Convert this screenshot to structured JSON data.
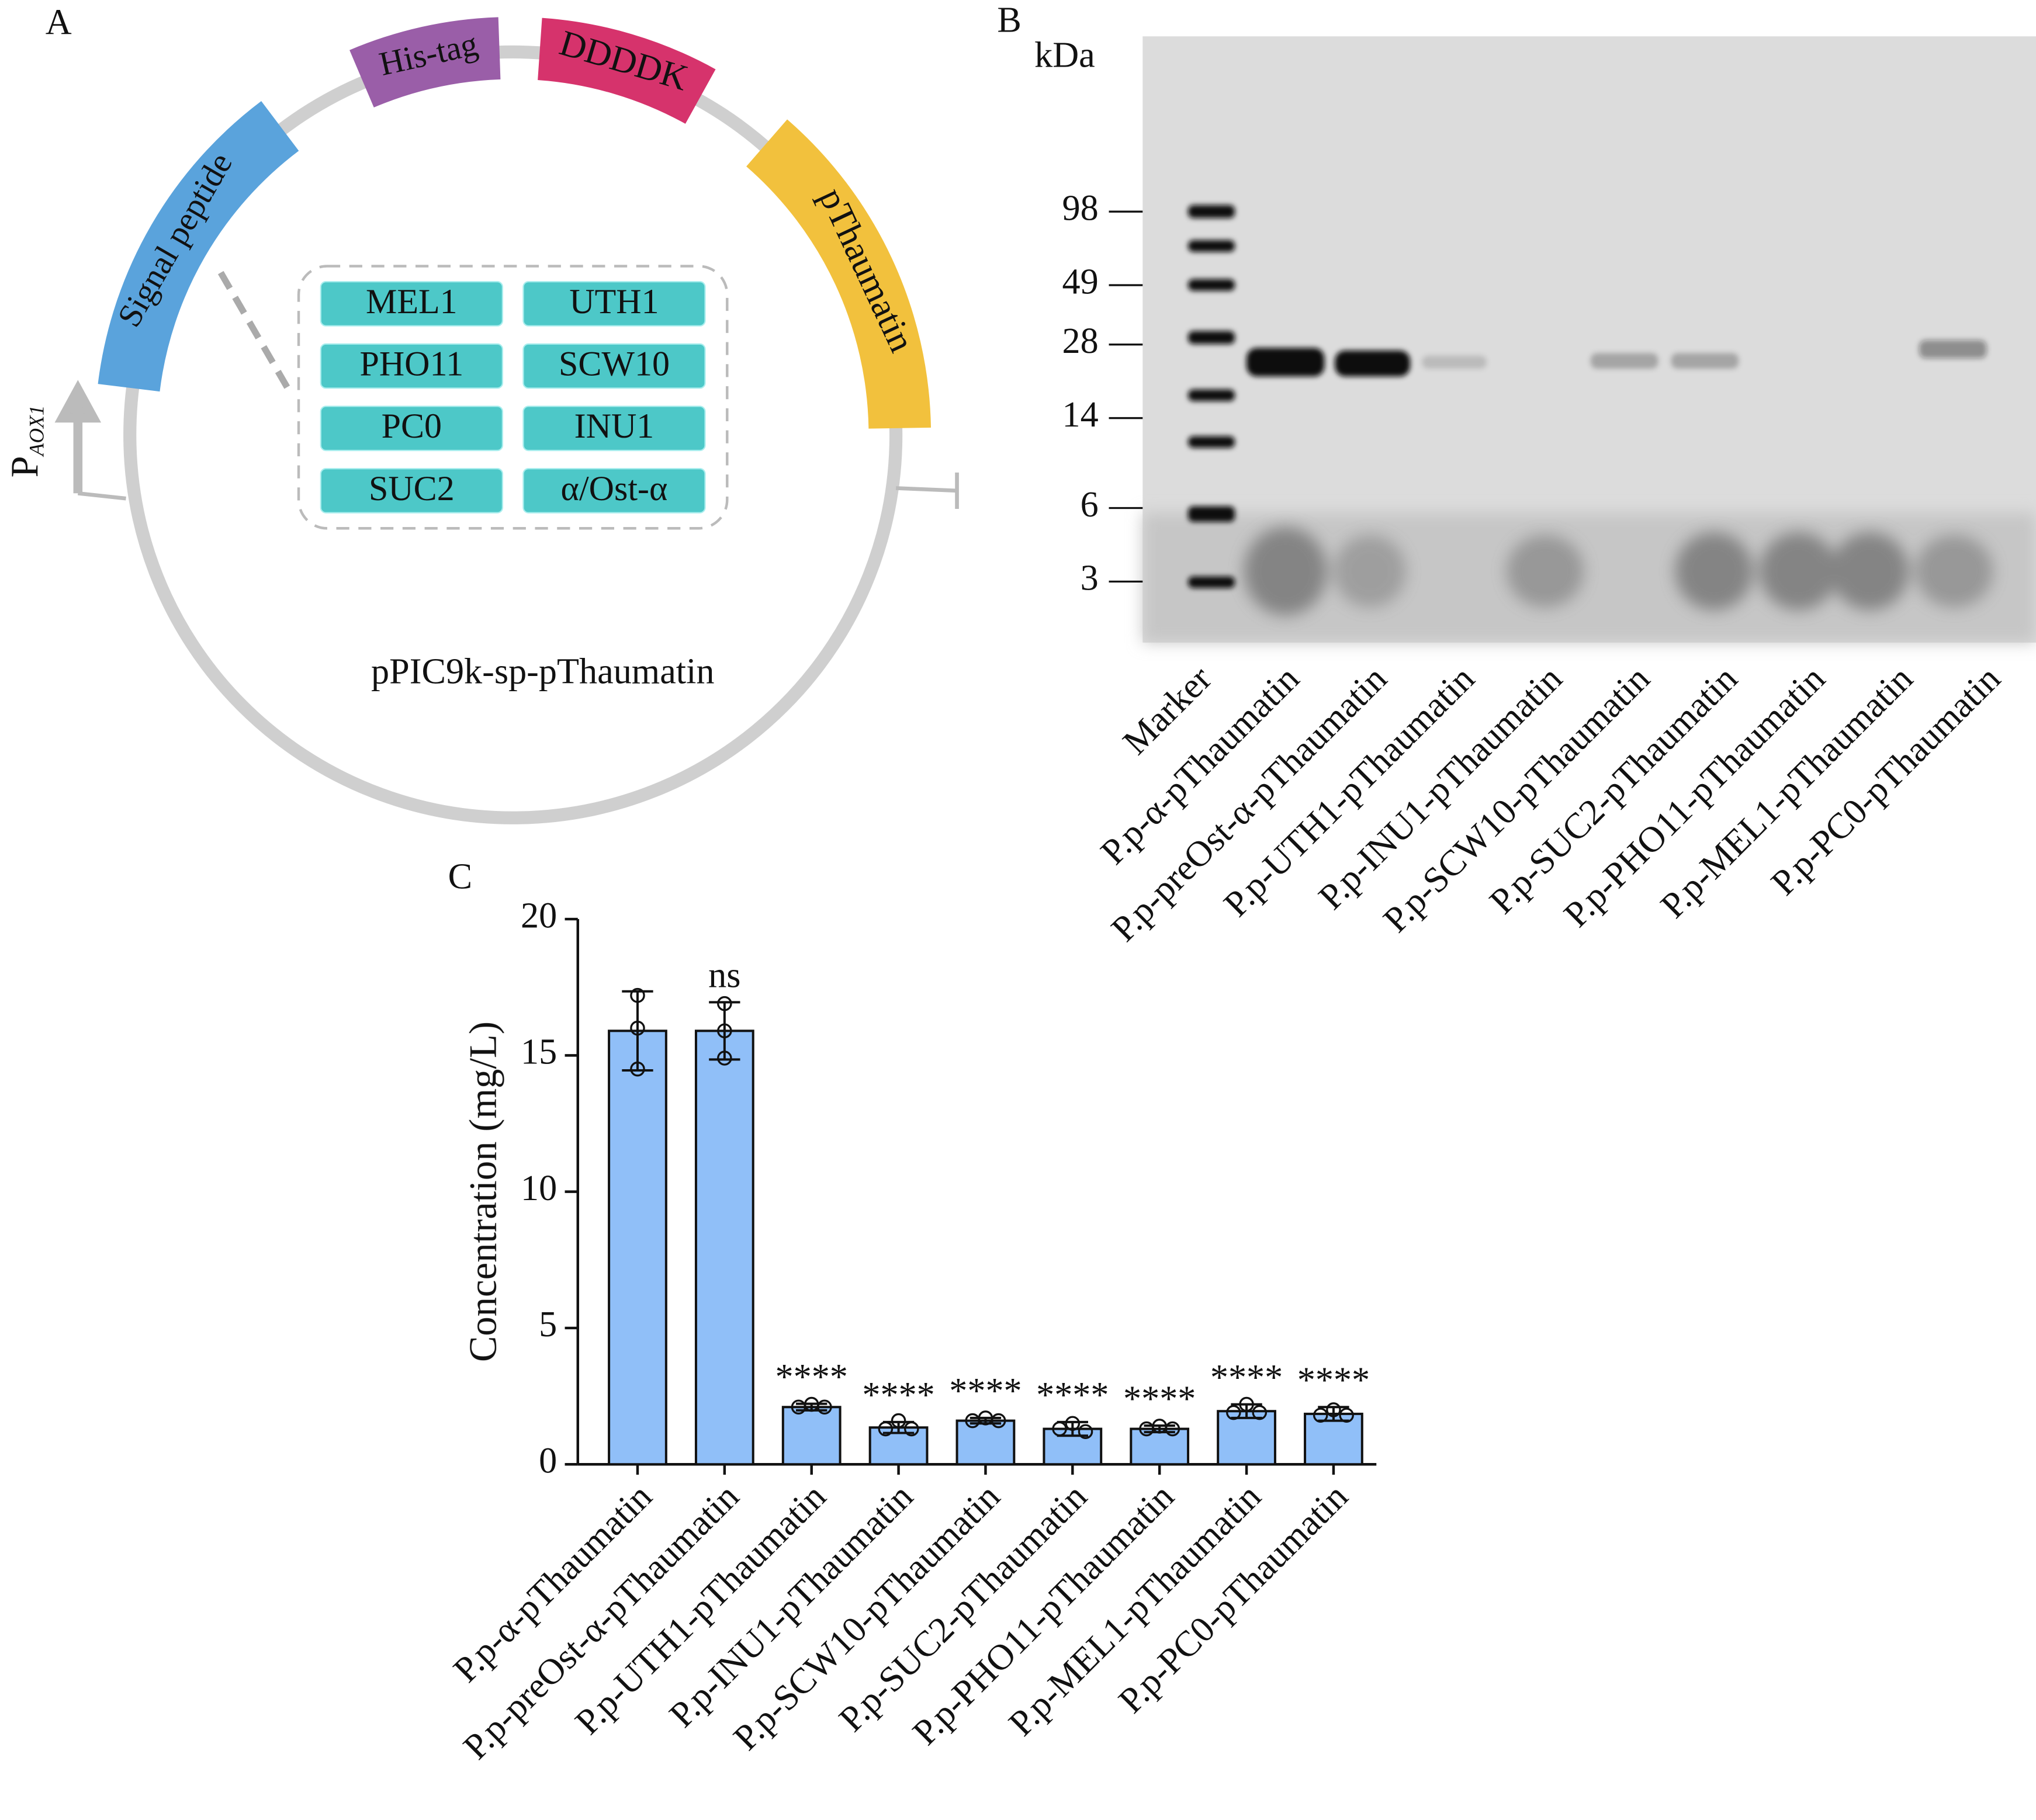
{
  "panel_labels": [
    "A",
    "B",
    "C"
  ],
  "plasmid": {
    "name": "pPIC9k-sp-pThaumatin",
    "promoter": "P",
    "promoter_sub": "AOX1",
    "segments": [
      "Signal peptide",
      "His-tag",
      "DDDDK",
      "pThaumatin"
    ],
    "signal_peptides": [
      "MEL1",
      "UTH1",
      "PHO11",
      "SCW10",
      "PC0",
      "INU1",
      "SUC2",
      "α/Ost-α"
    ]
  },
  "gel": {
    "unit": "kDa",
    "markers": [
      98,
      49,
      28,
      14,
      6,
      3
    ],
    "lanes": [
      "Marker",
      "P.p-α-pThaumatin",
      "P.p-preOst-α-pThaumatin",
      "P.p-UTH1-pThaumatin",
      "P.p-INU1-pThaumatin",
      "P.p-SCW10-pThaumatin",
      "P.p-SUC2-pThaumatin",
      "P.p-PHO11-pThaumatin",
      "P.p-MEL1-pThaumatin",
      "P.p-PC0-pThaumatin"
    ]
  },
  "chart_data": {
    "type": "bar",
    "ylabel": "Concentration (mg/L)",
    "categories": [
      "P.p-α-pThaumatin",
      "P.p-preOst-α-pThaumatin",
      "P.p-UTH1-pThaumatin",
      "P.p-INU1-pThaumatin",
      "P.p-SCW10-pThaumatin",
      "P.p-SUC2-pThaumatin",
      "P.p-PHO11-pThaumatin",
      "P.p-MEL1-pThaumatin",
      "P.p-PC0-pThaumatin"
    ],
    "values": [
      15.9,
      15.9,
      2.1,
      1.35,
      1.6,
      1.3,
      1.3,
      1.95,
      1.85
    ],
    "errors": [
      1.45,
      1.05,
      0.12,
      0.2,
      0.1,
      0.25,
      0.12,
      0.25,
      0.25
    ],
    "points": [
      [
        17.2,
        16.0,
        14.5
      ],
      [
        16.9,
        15.9,
        14.9
      ],
      [
        2.2,
        2.1,
        2.1
      ],
      [
        1.6,
        1.3,
        1.3
      ],
      [
        1.7,
        1.6,
        1.6
      ],
      [
        1.5,
        1.3,
        1.2
      ],
      [
        1.4,
        1.3,
        1.3
      ],
      [
        2.2,
        1.9,
        1.9
      ],
      [
        2.0,
        1.8,
        1.8
      ]
    ],
    "annotations": [
      null,
      "ns",
      "****",
      "****",
      "****",
      "****",
      "****",
      "****",
      "****"
    ],
    "color": "#90bff8",
    "ylim": [
      0,
      20
    ],
    "yticks": [
      0,
      5,
      10,
      15,
      20
    ]
  }
}
